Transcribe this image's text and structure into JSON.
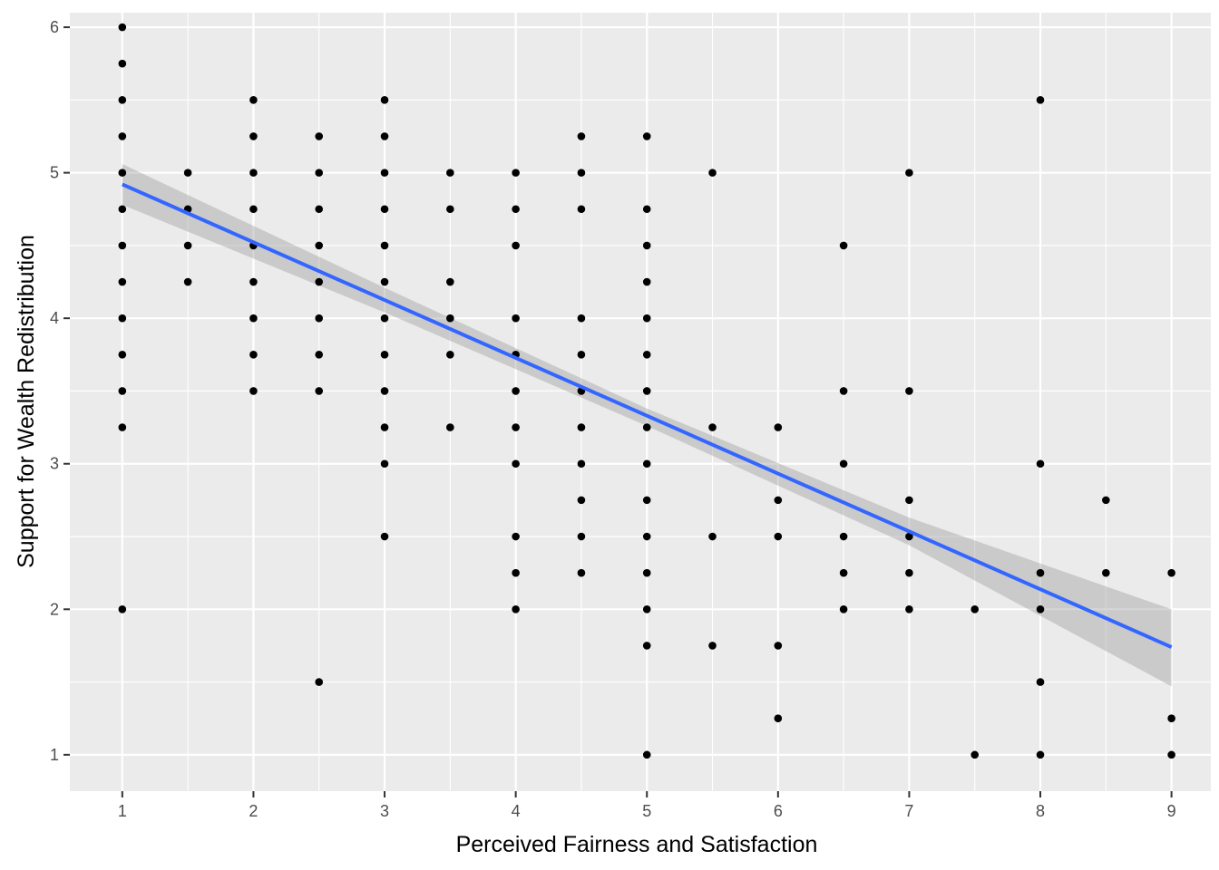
{
  "chart_data": {
    "type": "scatter",
    "title": "",
    "xlabel": "Perceived Fairness and Satisfaction",
    "ylabel": "Support for Wealth Redistribution",
    "xlim": [
      0.6,
      9.3
    ],
    "ylim": [
      0.75,
      6.1
    ],
    "x_ticks": [
      1,
      2,
      3,
      4,
      5,
      6,
      7,
      8,
      9
    ],
    "x_tick_labels": [
      "1",
      "2",
      "3",
      "4",
      "5",
      "6",
      "7",
      "8",
      "9"
    ],
    "y_ticks": [
      1,
      2,
      3,
      4,
      5,
      6
    ],
    "y_tick_labels": [
      "1",
      "2",
      "3",
      "4",
      "5",
      "6"
    ],
    "grid": true,
    "colors": {
      "panel": "#ebebeb",
      "grid": "#ffffff",
      "point": "#000000",
      "fit_line": "#3366ff",
      "confidence_band": "#999999",
      "tick": "#333333"
    },
    "points": [
      [
        1,
        6
      ],
      [
        1,
        5.75
      ],
      [
        1,
        5.5
      ],
      [
        1,
        5.25
      ],
      [
        1,
        5
      ],
      [
        1,
        4.75
      ],
      [
        1,
        4.5
      ],
      [
        1,
        4.25
      ],
      [
        1,
        4
      ],
      [
        1,
        3.75
      ],
      [
        1,
        3.5
      ],
      [
        1,
        3.25
      ],
      [
        1,
        2
      ],
      [
        1.5,
        5
      ],
      [
        1.5,
        4.75
      ],
      [
        1.5,
        4.5
      ],
      [
        1.5,
        4.25
      ],
      [
        2,
        5.5
      ],
      [
        2,
        5.25
      ],
      [
        2,
        5
      ],
      [
        2,
        4.75
      ],
      [
        2,
        4.5
      ],
      [
        2,
        4.25
      ],
      [
        2,
        4
      ],
      [
        2,
        3.75
      ],
      [
        2,
        3.5
      ],
      [
        2.5,
        5.25
      ],
      [
        2.5,
        5
      ],
      [
        2.5,
        4.75
      ],
      [
        2.5,
        4.5
      ],
      [
        2.5,
        4.25
      ],
      [
        2.5,
        4
      ],
      [
        2.5,
        3.75
      ],
      [
        2.5,
        3.5
      ],
      [
        2.5,
        1.5
      ],
      [
        3,
        5.5
      ],
      [
        3,
        5.25
      ],
      [
        3,
        5
      ],
      [
        3,
        4.75
      ],
      [
        3,
        4.5
      ],
      [
        3,
        4.25
      ],
      [
        3,
        4
      ],
      [
        3,
        3.75
      ],
      [
        3,
        3.5
      ],
      [
        3,
        3.25
      ],
      [
        3,
        3
      ],
      [
        3,
        2.5
      ],
      [
        3.5,
        5
      ],
      [
        3.5,
        4.75
      ],
      [
        3.5,
        4.25
      ],
      [
        3.5,
        4
      ],
      [
        3.5,
        3.75
      ],
      [
        3.5,
        3.25
      ],
      [
        4,
        5
      ],
      [
        4,
        4.75
      ],
      [
        4,
        4.5
      ],
      [
        4,
        4
      ],
      [
        4,
        3.75
      ],
      [
        4,
        3.5
      ],
      [
        4,
        3.25
      ],
      [
        4,
        3
      ],
      [
        4,
        2.5
      ],
      [
        4,
        2.25
      ],
      [
        4,
        2
      ],
      [
        4.5,
        5.25
      ],
      [
        4.5,
        5
      ],
      [
        4.5,
        4.75
      ],
      [
        4.5,
        4
      ],
      [
        4.5,
        3.75
      ],
      [
        4.5,
        3.5
      ],
      [
        4.5,
        3.25
      ],
      [
        4.5,
        3
      ],
      [
        4.5,
        2.75
      ],
      [
        4.5,
        2.5
      ],
      [
        4.5,
        2.25
      ],
      [
        5,
        5.25
      ],
      [
        5,
        4.75
      ],
      [
        5,
        4.5
      ],
      [
        5,
        4.25
      ],
      [
        5,
        4
      ],
      [
        5,
        3.75
      ],
      [
        5,
        3.5
      ],
      [
        5,
        3.25
      ],
      [
        5,
        3
      ],
      [
        5,
        2.75
      ],
      [
        5,
        2.5
      ],
      [
        5,
        2.25
      ],
      [
        5,
        2
      ],
      [
        5,
        1.75
      ],
      [
        5,
        1
      ],
      [
        5.5,
        5
      ],
      [
        5.5,
        3.25
      ],
      [
        5.5,
        2.5
      ],
      [
        5.5,
        1.75
      ],
      [
        6,
        3.25
      ],
      [
        6,
        2.75
      ],
      [
        6,
        2.5
      ],
      [
        6,
        1.75
      ],
      [
        6,
        1.25
      ],
      [
        6.5,
        4.5
      ],
      [
        6.5,
        3.5
      ],
      [
        6.5,
        3
      ],
      [
        6.5,
        2.5
      ],
      [
        6.5,
        2.25
      ],
      [
        6.5,
        2
      ],
      [
        7,
        5
      ],
      [
        7,
        3.5
      ],
      [
        7,
        2.75
      ],
      [
        7,
        2.5
      ],
      [
        7,
        2.25
      ],
      [
        7,
        2
      ],
      [
        7.5,
        2
      ],
      [
        7.5,
        1
      ],
      [
        8,
        5.5
      ],
      [
        8,
        3
      ],
      [
        8,
        2.25
      ],
      [
        8,
        2
      ],
      [
        8,
        1.5
      ],
      [
        8,
        1
      ],
      [
        8.5,
        2.75
      ],
      [
        8.5,
        2.25
      ],
      [
        9,
        2.25
      ],
      [
        9,
        1.25
      ],
      [
        9,
        1
      ]
    ],
    "fit_line": {
      "method": "lm",
      "x": [
        1,
        9
      ],
      "y": [
        4.92,
        1.74
      ]
    },
    "confidence_band": {
      "x": [
        1,
        3,
        5,
        7,
        9
      ],
      "lower": [
        4.78,
        4.04,
        3.26,
        2.44,
        1.47
      ],
      "upper": [
        5.06,
        4.21,
        3.38,
        2.63,
        2.0
      ]
    }
  }
}
